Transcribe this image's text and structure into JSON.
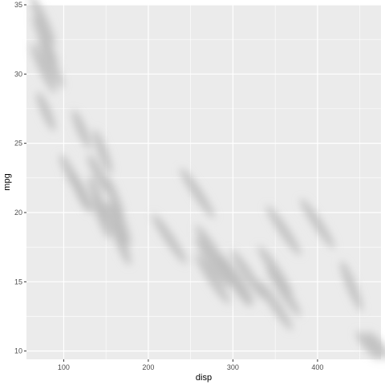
{
  "chart_data": {
    "type": "scatter",
    "title": "",
    "xlabel": "disp",
    "ylabel": "mpg",
    "xlim": [
      56,
      475
    ],
    "ylim": [
      9.4,
      35
    ],
    "x_ticks": [
      100,
      200,
      300,
      400
    ],
    "x_tick_labels": [
      "100",
      "200",
      "300",
      "400"
    ],
    "y_ticks": [
      10,
      15,
      20,
      25,
      30,
      35
    ],
    "y_tick_labels": [
      "10",
      "15",
      "20",
      "25",
      "30",
      "35"
    ],
    "grid": true,
    "legend": "none",
    "panel_color": "#ebebeb",
    "grid_color": "#ffffff",
    "point_color": "#bdbdbd",
    "points": [
      {
        "x": 75,
        "y": 33.9,
        "dx": 14,
        "dy": 1.8
      },
      {
        "x": 78,
        "y": 32.4,
        "dx": 14,
        "dy": 1.8
      },
      {
        "x": 85,
        "y": 30.8,
        "dx": 14,
        "dy": 1.8
      },
      {
        "x": 76,
        "y": 30.4,
        "dx": 14,
        "dy": 1.8
      },
      {
        "x": 79,
        "y": 27.3,
        "dx": 10,
        "dy": 1.4
      },
      {
        "x": 121,
        "y": 26.0,
        "dx": 10,
        "dy": 1.4
      },
      {
        "x": 120,
        "y": 21.5,
        "dx": 10,
        "dy": 1.4
      },
      {
        "x": 108,
        "y": 22.8,
        "dx": 12,
        "dy": 1.4
      },
      {
        "x": 141,
        "y": 22.8,
        "dx": 12,
        "dy": 1.4
      },
      {
        "x": 121,
        "y": 21.4,
        "dx": 12,
        "dy": 1.4
      },
      {
        "x": 146,
        "y": 24.4,
        "dx": 10,
        "dy": 1.6
      },
      {
        "x": 140,
        "y": 21.0,
        "dx": 10,
        "dy": 1.6
      },
      {
        "x": 160,
        "y": 21.0,
        "dx": 10,
        "dy": 1.6
      },
      {
        "x": 160,
        "y": 19.2,
        "dx": 10,
        "dy": 1.6
      },
      {
        "x": 168,
        "y": 19.2,
        "dx": 10,
        "dy": 1.6
      },
      {
        "x": 168,
        "y": 17.8,
        "dx": 10,
        "dy": 1.6
      },
      {
        "x": 145,
        "y": 19.7,
        "dx": 10,
        "dy": 1.6
      },
      {
        "x": 258,
        "y": 21.4,
        "dx": 20,
        "dy": 1.8
      },
      {
        "x": 225,
        "y": 18.1,
        "dx": 20,
        "dy": 1.8
      },
      {
        "x": 276,
        "y": 17.3,
        "dx": 20,
        "dy": 1.8
      },
      {
        "x": 276,
        "y": 16.4,
        "dx": 20,
        "dy": 1.8
      },
      {
        "x": 276,
        "y": 15.2,
        "dx": 20,
        "dy": 1.8
      },
      {
        "x": 304,
        "y": 15.2,
        "dx": 20,
        "dy": 1.8
      },
      {
        "x": 318,
        "y": 15.5,
        "dx": 20,
        "dy": 1.8
      },
      {
        "x": 301,
        "y": 15.0,
        "dx": 20,
        "dy": 1.8
      },
      {
        "x": 350,
        "y": 15.8,
        "dx": 20,
        "dy": 1.8
      },
      {
        "x": 350,
        "y": 13.3,
        "dx": 20,
        "dy": 1.8
      },
      {
        "x": 360,
        "y": 14.3,
        "dx": 20,
        "dy": 1.8
      },
      {
        "x": 360,
        "y": 18.7,
        "dx": 20,
        "dy": 1.8
      },
      {
        "x": 400,
        "y": 19.2,
        "dx": 20,
        "dy": 1.8
      },
      {
        "x": 440,
        "y": 14.7,
        "dx": 12,
        "dy": 1.8
      },
      {
        "x": 460,
        "y": 10.4,
        "dx": 14,
        "dy": 1.0
      },
      {
        "x": 472,
        "y": 10.4,
        "dx": 14,
        "dy": 1.0
      }
    ]
  }
}
